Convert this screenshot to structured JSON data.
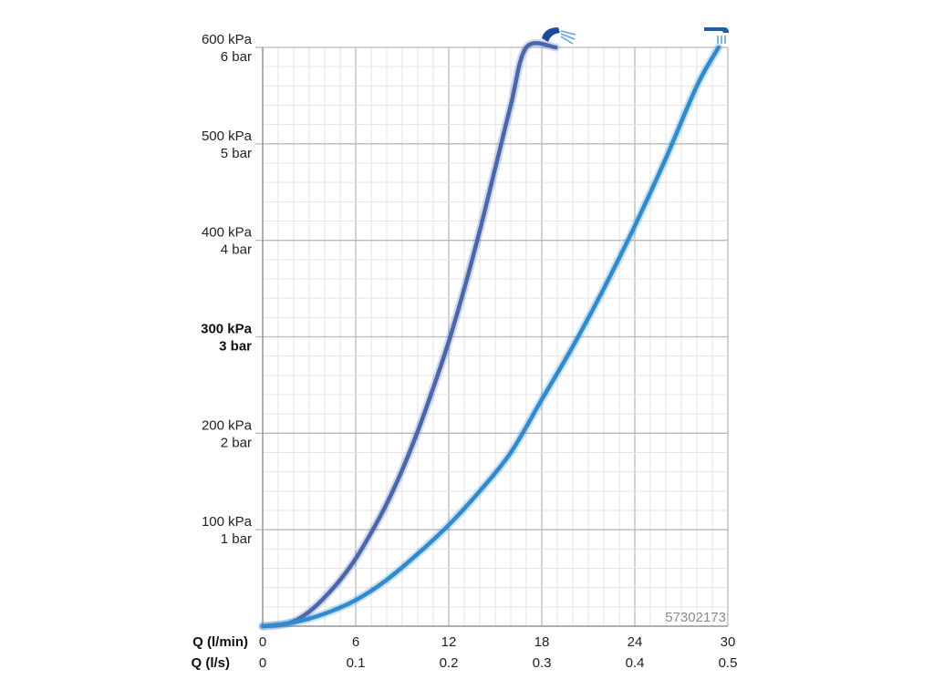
{
  "chart_data": {
    "type": "line",
    "product_code": "57302173",
    "x_axis": {
      "label_primary": "Q (l/min)",
      "label_secondary": "Q (l/s)",
      "range": [
        0,
        30
      ],
      "ticks_primary": [
        "0",
        "6",
        "12",
        "18",
        "24",
        "30"
      ],
      "ticks_secondary": [
        "0",
        "0.1",
        "0.2",
        "0.3",
        "0.4",
        "0.5"
      ]
    },
    "y_axis": {
      "range_kpa": [
        0,
        600
      ],
      "ticks": [
        {
          "value": 100,
          "kpa": "100 kPa",
          "bar": "1 bar",
          "bold": false
        },
        {
          "value": 200,
          "kpa": "200 kPa",
          "bar": "2 bar",
          "bold": false
        },
        {
          "value": 300,
          "kpa": "300 kPa",
          "bar": "3 bar",
          "bold": true
        },
        {
          "value": 400,
          "kpa": "400 kPa",
          "bar": "4 bar",
          "bold": false
        },
        {
          "value": 500,
          "kpa": "500 kPa",
          "bar": "5 bar",
          "bold": false
        },
        {
          "value": 600,
          "kpa": "600 kPa",
          "bar": "6 bar",
          "bold": false
        }
      ]
    },
    "grid": true,
    "series": [
      {
        "icon": "spray-shower-head-icon",
        "color": "#4a67ad",
        "x": [
          0,
          1,
          2,
          3,
          4,
          5,
          6,
          7,
          8,
          9,
          10,
          11,
          12,
          13,
          14,
          15,
          16,
          17,
          18,
          18.9
        ],
        "y": [
          0,
          1,
          5,
          15,
          30,
          48,
          70,
          97,
          127,
          162,
          202,
          247,
          295,
          350,
          410,
          475,
          540,
          600,
          640,
          600
        ]
      },
      {
        "icon": "rain-shower-head-icon",
        "color": "#2f8bd0",
        "x": [
          0,
          2,
          4,
          6,
          8,
          10,
          12,
          14,
          16,
          18,
          20,
          22,
          24,
          26,
          28,
          29.4
        ],
        "y": [
          0,
          4,
          13,
          27,
          48,
          75,
          105,
          140,
          180,
          235,
          290,
          350,
          415,
          485,
          560,
          600
        ]
      }
    ]
  }
}
